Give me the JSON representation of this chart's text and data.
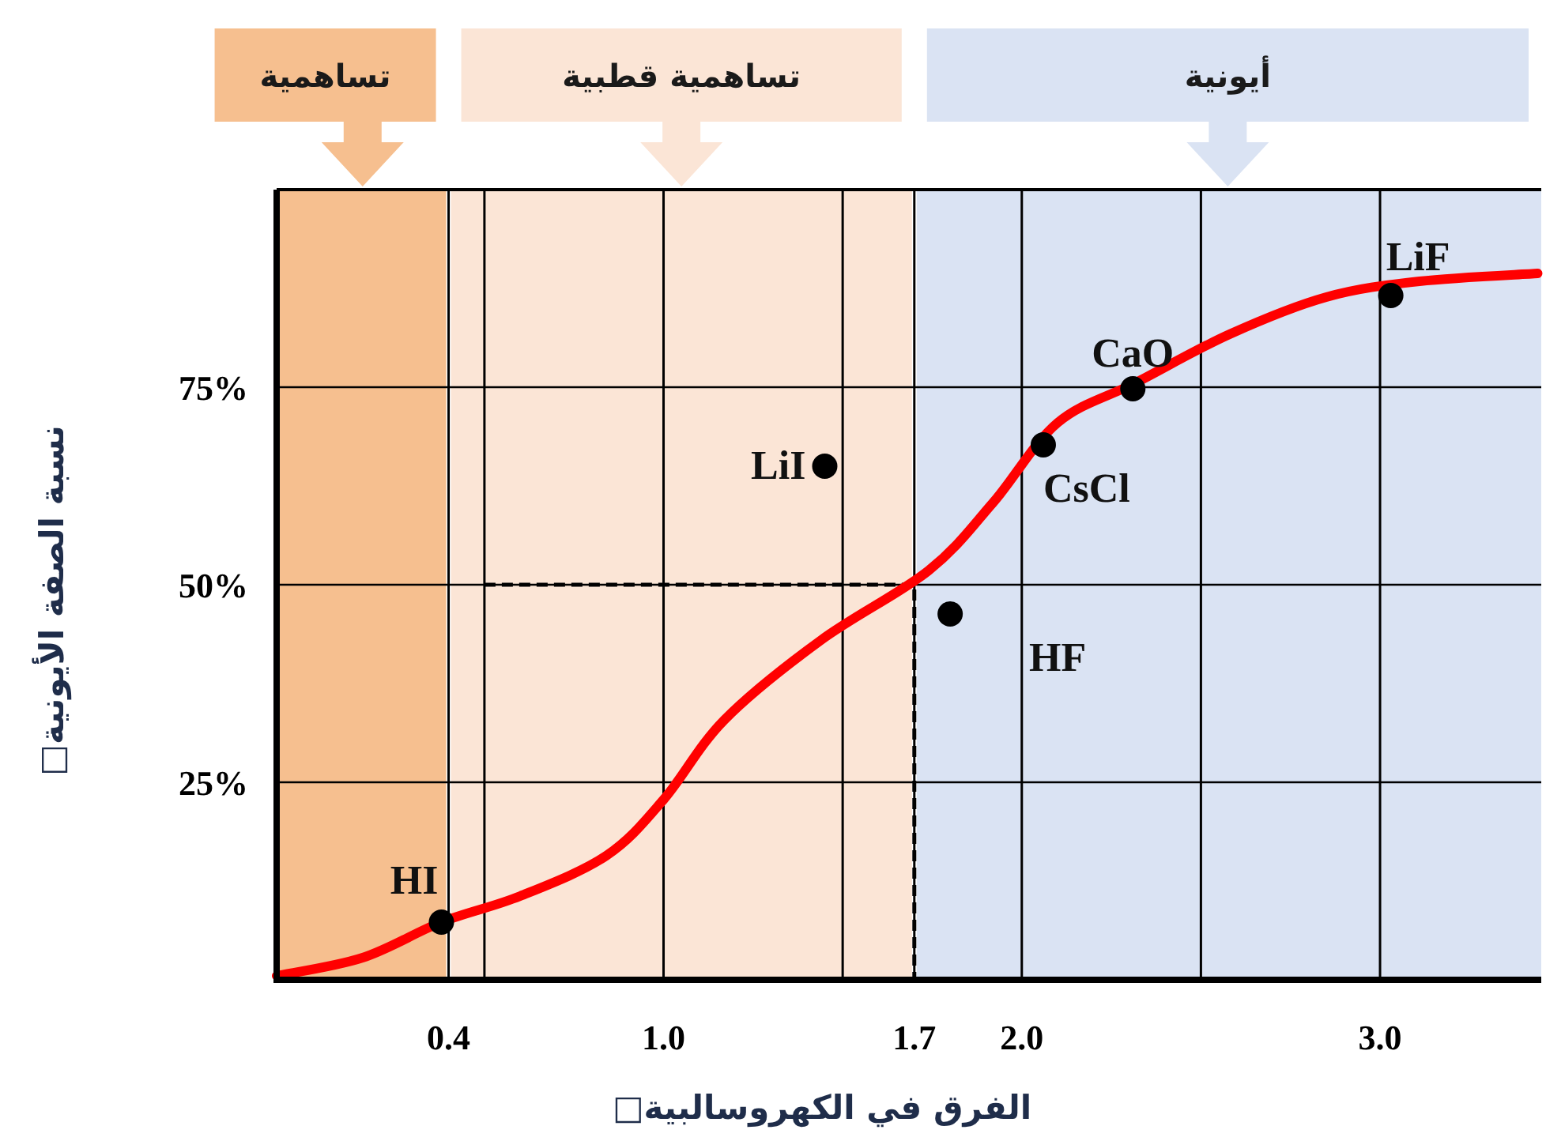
{
  "chart_data": {
    "type": "line",
    "xlabel": "الفرق في الكهروسالبية□",
    "ylabel": "نسبة الصفة الأيونية□",
    "xlim": [
      -0.08,
      3.45
    ],
    "ylim": [
      0,
      100
    ],
    "xticks": [
      {
        "value": 0.4,
        "label": "0.4"
      },
      {
        "value": 0.5,
        "label": null
      },
      {
        "value": 1.0,
        "label": "1.0"
      },
      {
        "value": 1.5,
        "label": null
      },
      {
        "value": 1.7,
        "label": "1.7"
      },
      {
        "value": 2.0,
        "label": "2.0"
      },
      {
        "value": 2.5,
        "label": null
      },
      {
        "value": 3.0,
        "label": "3.0"
      }
    ],
    "yticks": [
      {
        "value": 25,
        "label": "25%"
      },
      {
        "value": 50,
        "label": "50%"
      },
      {
        "value": 75,
        "label": "75%"
      }
    ],
    "grid": true,
    "bands": [
      {
        "axis": "x",
        "from": -0.08,
        "to": 0.4,
        "label": "تساهمية",
        "color": "#f6bf8f"
      },
      {
        "axis": "x",
        "from": 0.4,
        "to": 1.7,
        "label": "تساهمية قطبية",
        "color": "#fbe5d6"
      },
      {
        "axis": "x",
        "from": 1.7,
        "to": 3.45,
        "label": "أيونية",
        "color": "#dae3f3"
      }
    ],
    "series": [
      {
        "type": "line",
        "color": "#000000",
        "line_style": "dashed",
        "x": [
          0.5,
          1.7,
          1.7
        ],
        "values": [
          50,
          50,
          0
        ]
      },
      {
        "color": "#ff0000",
        "line_style": "solid",
        "x": [
          -0.08,
          0.16,
          0.38,
          0.6,
          0.84,
          1.0,
          1.17,
          1.44,
          1.74,
          1.92,
          2.1,
          2.32,
          2.58,
          2.85,
          3.11,
          3.44
        ],
        "values": [
          0.5,
          2.8,
          7.3,
          10.6,
          15.7,
          22.8,
          32.9,
          43,
          51.8,
          60.4,
          70.5,
          75.6,
          81.7,
          86.4,
          88.4,
          89.4
        ]
      },
      {
        "type": "scatter",
        "color": "#000000",
        "marker": "circle",
        "x": [
          0.38,
          1.45,
          1.8,
          2.06,
          2.31,
          3.03
        ],
        "values": [
          7.3,
          65,
          46.3,
          67.7,
          74.8,
          86.6
        ]
      }
    ],
    "annotations": [
      {
        "text": "HI",
        "x": 0.38,
        "y": 7.3
      },
      {
        "text": "LiI",
        "x": 1.45,
        "y": 65
      },
      {
        "text": "HF",
        "x": 1.8,
        "y": 46.3
      },
      {
        "text": "CsCl",
        "x": 2.06,
        "y": 67.7
      },
      {
        "text": "CaO",
        "x": 2.31,
        "y": 74.8
      },
      {
        "text": "LiF",
        "x": 3.03,
        "y": 86.6
      }
    ]
  }
}
